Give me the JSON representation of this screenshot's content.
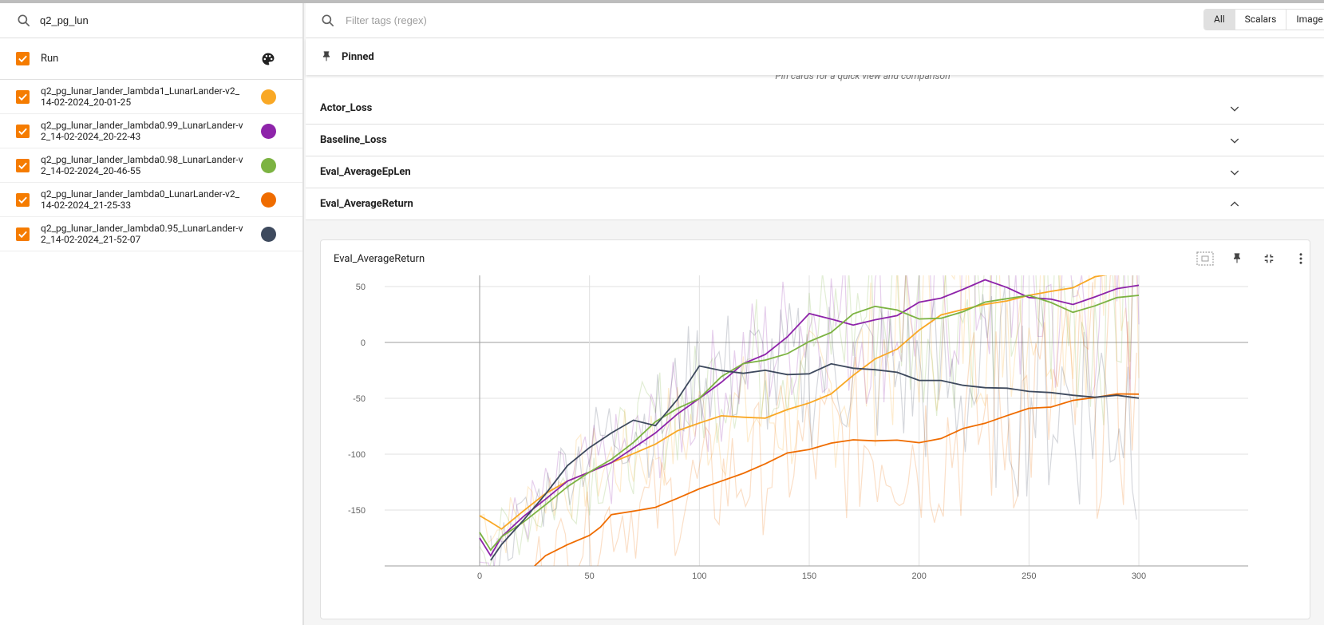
{
  "sidebar": {
    "search_value": "q2_pg_lun",
    "header_label": "Run",
    "runs": [
      {
        "name": "q2_pg_lunar_lander_lambda1_LunarLander-v2_14-02-2024_20-01-25",
        "color": "#f9a825"
      },
      {
        "name": "q2_pg_lunar_lander_lambda0.99_LunarLander-v2_14-02-2024_20-22-43",
        "color": "#8e24aa"
      },
      {
        "name": "q2_pg_lunar_lander_lambda0.98_LunarLander-v2_14-02-2024_20-46-55",
        "color": "#7cb342"
      },
      {
        "name": "q2_pg_lunar_lander_lambda0_LunarLander-v2_14-02-2024_21-25-33",
        "color": "#ef6c00"
      },
      {
        "name": "q2_pg_lunar_lander_lambda0.95_LunarLander-v2_14-02-2024_21-52-07",
        "color": "#3e4a5e"
      }
    ]
  },
  "toolbar": {
    "filter_placeholder": "Filter tags (regex)",
    "toggle": [
      "All",
      "Scalars",
      "Image"
    ]
  },
  "pinned": {
    "label": "Pinned",
    "hint": "Pin cards for a quick view and comparison"
  },
  "groups": [
    "Actor_Loss",
    "Baseline_Loss",
    "Eval_AverageEpLen",
    "Eval_AverageReturn"
  ],
  "card": {
    "title": "Eval_AverageReturn"
  },
  "chart_data": {
    "type": "line",
    "title": "Eval_AverageReturn",
    "xlim": [
      -50,
      350
    ],
    "ylim": [
      -200,
      60
    ],
    "xticks": [
      0,
      50,
      100,
      150,
      200,
      250,
      300
    ],
    "yticks": [
      50,
      0,
      -50,
      -100,
      -150
    ],
    "grid": true,
    "series": [
      {
        "color": "#f9a825",
        "points": [
          [
            0,
            -155
          ],
          [
            5,
            -160
          ],
          [
            10,
            -168
          ],
          [
            20,
            -150
          ],
          [
            30,
            -135
          ],
          [
            40,
            -125
          ],
          [
            50,
            -115
          ],
          [
            60,
            -108
          ],
          [
            70,
            -100
          ],
          [
            80,
            -90
          ],
          [
            90,
            -80
          ],
          [
            100,
            -72
          ],
          [
            110,
            -65
          ],
          [
            120,
            -68
          ],
          [
            130,
            -67
          ],
          [
            140,
            -60
          ],
          [
            150,
            -55
          ],
          [
            160,
            -45
          ],
          [
            170,
            -30
          ],
          [
            180,
            -15
          ],
          [
            190,
            -5
          ],
          [
            200,
            10
          ],
          [
            210,
            25
          ],
          [
            220,
            30
          ],
          [
            230,
            33
          ],
          [
            240,
            38
          ],
          [
            250,
            42
          ],
          [
            260,
            45
          ],
          [
            270,
            50
          ],
          [
            280,
            58
          ],
          [
            290,
            62
          ],
          [
            300,
            64
          ]
        ]
      },
      {
        "color": "#8e24aa",
        "points": [
          [
            0,
            -175
          ],
          [
            5,
            -190
          ],
          [
            10,
            -175
          ],
          [
            20,
            -155
          ],
          [
            30,
            -140
          ],
          [
            40,
            -125
          ],
          [
            50,
            -115
          ],
          [
            60,
            -108
          ],
          [
            70,
            -95
          ],
          [
            80,
            -80
          ],
          [
            90,
            -65
          ],
          [
            100,
            -50
          ],
          [
            110,
            -35
          ],
          [
            120,
            -20
          ],
          [
            130,
            -10
          ],
          [
            140,
            5
          ],
          [
            150,
            25
          ],
          [
            160,
            22
          ],
          [
            170,
            15
          ],
          [
            180,
            20
          ],
          [
            190,
            25
          ],
          [
            200,
            35
          ],
          [
            210,
            40
          ],
          [
            220,
            48
          ],
          [
            230,
            55
          ],
          [
            240,
            50
          ],
          [
            250,
            40
          ],
          [
            260,
            38
          ],
          [
            270,
            35
          ],
          [
            280,
            40
          ],
          [
            290,
            48
          ],
          [
            300,
            52
          ]
        ]
      },
      {
        "color": "#7cb342",
        "points": [
          [
            0,
            -170
          ],
          [
            5,
            -185
          ],
          [
            10,
            -175
          ],
          [
            20,
            -160
          ],
          [
            30,
            -145
          ],
          [
            40,
            -130
          ],
          [
            50,
            -115
          ],
          [
            60,
            -105
          ],
          [
            70,
            -90
          ],
          [
            80,
            -70
          ],
          [
            90,
            -60
          ],
          [
            100,
            -50
          ],
          [
            110,
            -30
          ],
          [
            120,
            -20
          ],
          [
            130,
            -15
          ],
          [
            140,
            -10
          ],
          [
            150,
            0
          ],
          [
            160,
            10
          ],
          [
            170,
            25
          ],
          [
            180,
            32
          ],
          [
            190,
            30
          ],
          [
            200,
            20
          ],
          [
            210,
            22
          ],
          [
            220,
            28
          ],
          [
            230,
            35
          ],
          [
            240,
            40
          ],
          [
            250,
            42
          ],
          [
            260,
            35
          ],
          [
            270,
            28
          ],
          [
            280,
            32
          ],
          [
            290,
            40
          ],
          [
            300,
            43
          ]
        ]
      },
      {
        "color": "#ef6c00",
        "points": [
          [
            25,
            -200
          ],
          [
            30,
            -190
          ],
          [
            40,
            -182
          ],
          [
            50,
            -172
          ],
          [
            55,
            -165
          ],
          [
            60,
            -155
          ],
          [
            70,
            -150
          ],
          [
            80,
            -148
          ],
          [
            90,
            -140
          ],
          [
            100,
            -130
          ],
          [
            110,
            -125
          ],
          [
            120,
            -117
          ],
          [
            130,
            -108
          ],
          [
            140,
            -100
          ],
          [
            150,
            -95
          ],
          [
            160,
            -90
          ],
          [
            170,
            -88
          ],
          [
            180,
            -87
          ],
          [
            190,
            -88
          ],
          [
            200,
            -90
          ],
          [
            210,
            -85
          ],
          [
            220,
            -78
          ],
          [
            230,
            -72
          ],
          [
            240,
            -65
          ],
          [
            250,
            -60
          ],
          [
            260,
            -57
          ],
          [
            270,
            -52
          ],
          [
            280,
            -50
          ],
          [
            290,
            -45
          ],
          [
            300,
            -47
          ]
        ]
      },
      {
        "color": "#3e4a5e",
        "points": [
          [
            5,
            -195
          ],
          [
            10,
            -180
          ],
          [
            20,
            -160
          ],
          [
            30,
            -135
          ],
          [
            40,
            -110
          ],
          [
            50,
            -95
          ],
          [
            60,
            -80
          ],
          [
            70,
            -70
          ],
          [
            80,
            -75
          ],
          [
            90,
            -50
          ],
          [
            100,
            -22
          ],
          [
            110,
            -25
          ],
          [
            120,
            -27
          ],
          [
            130,
            -26
          ],
          [
            140,
            -28
          ],
          [
            150,
            -28
          ],
          [
            160,
            -20
          ],
          [
            170,
            -22
          ],
          [
            180,
            -25
          ],
          [
            190,
            -27
          ],
          [
            200,
            -33
          ],
          [
            210,
            -35
          ],
          [
            220,
            -38
          ],
          [
            230,
            -40
          ],
          [
            240,
            -42
          ],
          [
            250,
            -43
          ],
          [
            260,
            -45
          ],
          [
            270,
            -48
          ],
          [
            280,
            -48
          ],
          [
            290,
            -48
          ],
          [
            300,
            -50
          ]
        ]
      }
    ]
  }
}
